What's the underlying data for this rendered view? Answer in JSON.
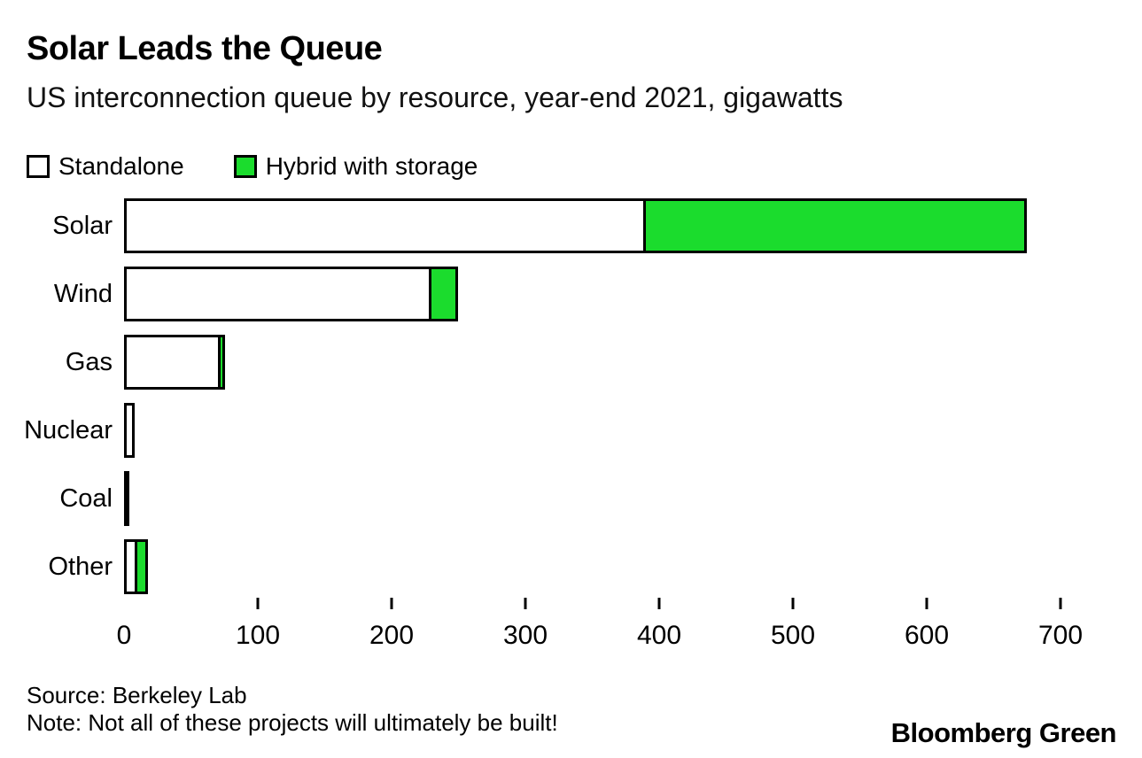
{
  "header": {
    "title": "Solar Leads the Queue",
    "subtitle": "US interconnection queue by resource, year-end 2021, gigawatts"
  },
  "legend": {
    "items": [
      {
        "label": "Standalone",
        "color": "#ffffff"
      },
      {
        "label": "Hybrid with storage",
        "color": "#1bdc2d"
      }
    ]
  },
  "chart_data": {
    "type": "bar",
    "orientation": "horizontal",
    "stacked": true,
    "title": "Solar Leads the Queue",
    "subtitle": "US interconnection queue by resource, year-end 2021, gigawatts",
    "unit": "gigawatts",
    "categories": [
      "Solar",
      "Wind",
      "Gas",
      "Nuclear",
      "Coal",
      "Other"
    ],
    "series": [
      {
        "name": "Standalone",
        "color": "#ffffff",
        "values": [
          390,
          230,
          72,
          8,
          1,
          10
        ]
      },
      {
        "name": "Hybrid with storage",
        "color": "#1bdc2d",
        "values": [
          285,
          20,
          3,
          0,
          0,
          8
        ]
      }
    ],
    "totals": [
      675,
      250,
      75,
      8,
      1,
      18
    ],
    "xlim": [
      0,
      740
    ],
    "x_tick_labels": [
      0,
      100,
      200,
      300,
      400,
      500,
      600,
      700
    ],
    "x_tick_marks": [
      100,
      200,
      300,
      400,
      500,
      600,
      700
    ],
    "grid": false,
    "legend_position": "top-left",
    "bar_outline_color": "#000000"
  },
  "footer": {
    "source": "Source: Berkeley Lab",
    "note": "Note: Not all of these projects will ultimately be built!",
    "brand": "Bloomberg Green"
  }
}
